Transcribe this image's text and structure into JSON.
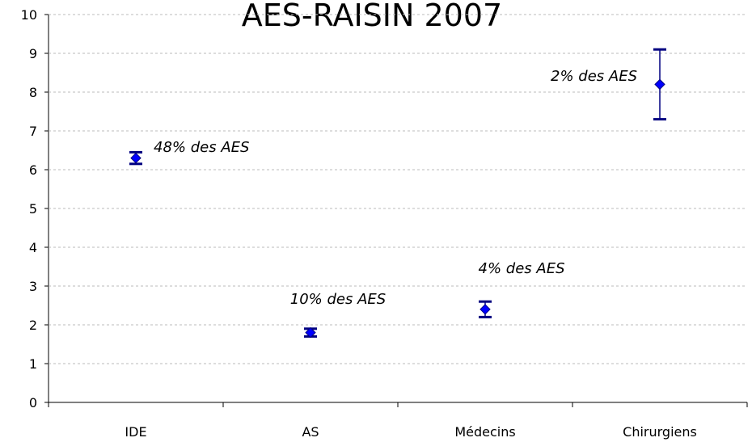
{
  "chart_data": {
    "type": "errorpoint",
    "title": "AES-RAISIN 2007",
    "categories": [
      "IDE",
      "AS",
      "Médecins",
      "Chirurgiens"
    ],
    "series": [
      {
        "color": "#000080",
        "marker_color": "#0000ff",
        "values": [
          6.3,
          1.8,
          2.4,
          8.2
        ],
        "errors": [
          0.15,
          0.1,
          0.2,
          0.9
        ]
      }
    ],
    "annotations": [
      "48% des AES",
      "10% des AES",
      "4% des AES",
      "2% des AES"
    ],
    "ylim": [
      0,
      10
    ],
    "yticks": [
      0,
      1,
      2,
      3,
      4,
      5,
      6,
      7,
      8,
      9,
      10
    ],
    "grid": true
  }
}
